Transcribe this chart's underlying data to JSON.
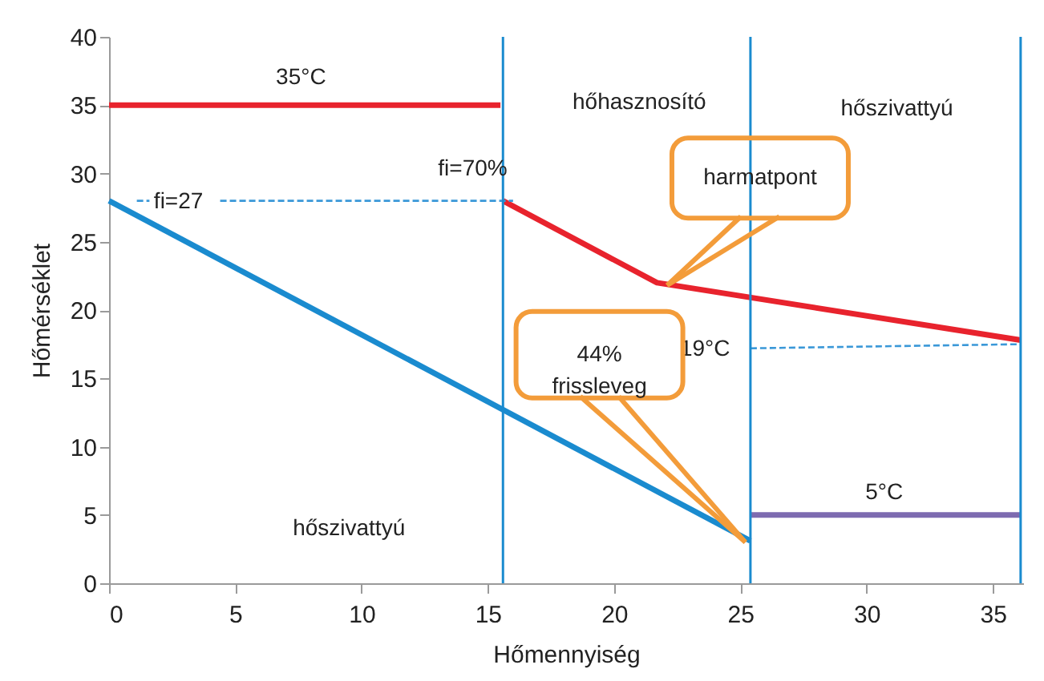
{
  "chart_data": {
    "type": "line",
    "xlabel": "Hőmennyiség",
    "ylabel": "Hőmérséklet",
    "xlim": [
      0,
      36.2
    ],
    "ylim": [
      0,
      40
    ],
    "xticks": [
      0,
      5,
      10,
      15,
      20,
      25,
      30,
      35
    ],
    "yticks": [
      0,
      5,
      10,
      15,
      20,
      25,
      30,
      35,
      40
    ],
    "grid": false,
    "legend": false,
    "marker": "none",
    "line_style": "solid",
    "series": [
      {
        "color": "#e8232d",
        "x": [
          0,
          15.5
        ],
        "values": [
          35,
          35
        ]
      },
      {
        "color": "#1a8bcf",
        "x": [
          0,
          25.4
        ],
        "values": [
          28,
          3.1
        ]
      },
      {
        "color": "#e8232d",
        "x": [
          15.6,
          21.7,
          36.1
        ],
        "values": [
          28,
          22,
          17.8
        ]
      },
      {
        "color": "#7d6bb0",
        "x": [
          25.4,
          36.1
        ],
        "values": [
          5,
          5
        ]
      },
      {
        "color": "#3a98d8",
        "line_style": "dashed",
        "x": [
          1.1,
          1.6,
          3,
          4.4,
          16
        ],
        "values": [
          28,
          28,
          null,
          28,
          28
        ]
      },
      {
        "color": "#3a98d8",
        "line_style": "dashed",
        "x": [
          25.4,
          36.1
        ],
        "values": [
          17.2,
          17.5
        ]
      }
    ],
    "ref_lines": [
      {
        "axis": "x",
        "value": 15.6,
        "color": "#1a8bcf"
      },
      {
        "axis": "x",
        "value": 25.4,
        "color": "#1a8bcf"
      },
      {
        "axis": "x",
        "value": 36.1,
        "color": "#1a8bcf"
      }
    ],
    "annotations": [
      "35°C",
      "hőhasznosító",
      "hőszivattyú",
      "hőszivattyú",
      "fi=27",
      "fi=70%",
      "19°C",
      "5°C",
      {
        "text": "harmatpont",
        "x": 22.1,
        "y": 21.8
      },
      {
        "text": "44%\nfrissleveg",
        "x": 25.2,
        "y": 3
      }
    ]
  }
}
